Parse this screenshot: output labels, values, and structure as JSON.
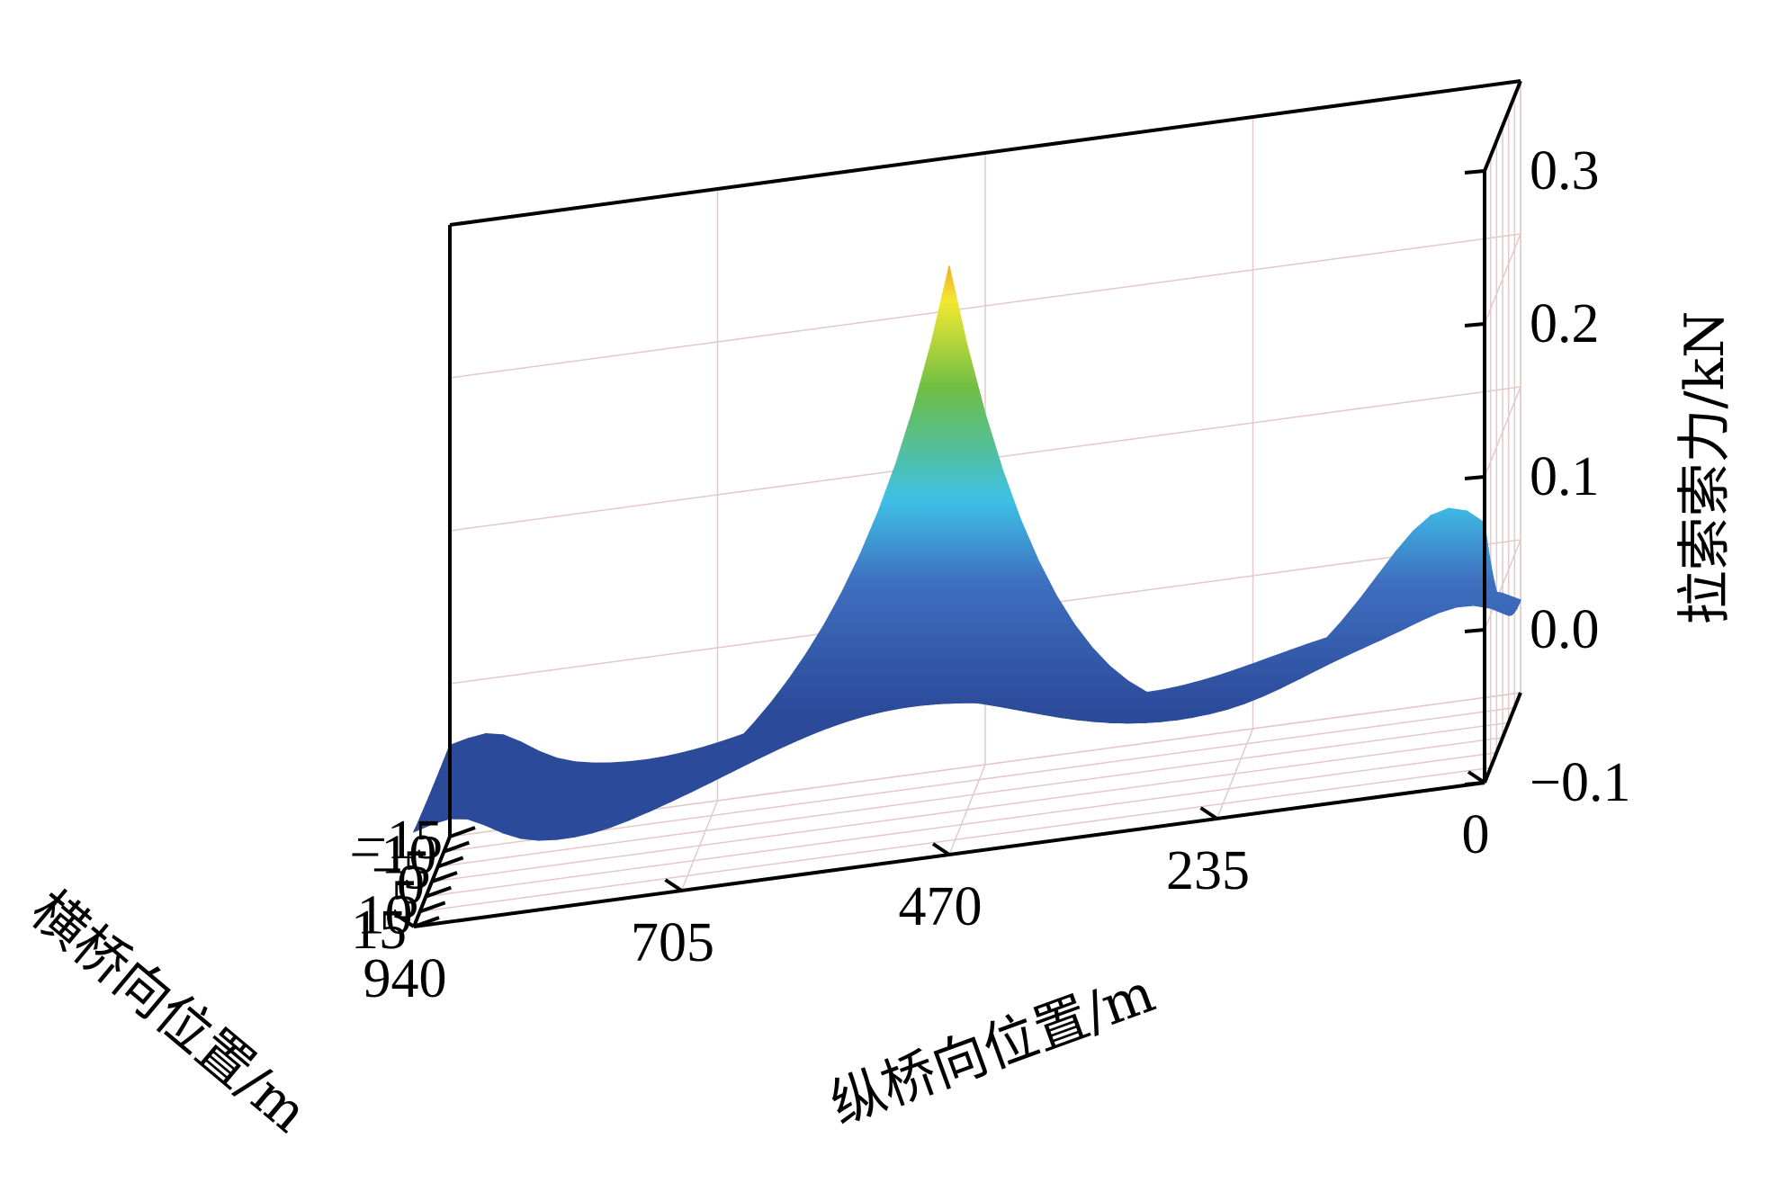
{
  "chart_data": {
    "type": "surface3d",
    "title": "",
    "xlabel": "纵桥向位置/m",
    "ylabel": "横桥向位置/m",
    "zlabel": "拉索索力/kN",
    "x_ticks": [
      "0",
      "235",
      "470",
      "705",
      "940"
    ],
    "x_range": [
      0,
      940
    ],
    "y_ticks": [
      "−15",
      "−10",
      "−5",
      "0",
      "5",
      "10",
      "15"
    ],
    "y_range": [
      -15,
      15
    ],
    "z_ticks": [
      "−0.1",
      "0.0",
      "0.1",
      "0.2",
      "0.3"
    ],
    "z_range": [
      -0.1,
      0.3
    ],
    "peak": {
      "x": 470,
      "y": 15,
      "z": 0.29
    },
    "secondary_peak": {
      "x": 0,
      "y": 15,
      "z": 0.06
    },
    "colormap": [
      "#2c4a9a",
      "#3f6fc0",
      "#3ec0e6",
      "#6dbe45",
      "#f2e830",
      "#f08a24",
      "#e0231f"
    ],
    "grid": true
  }
}
